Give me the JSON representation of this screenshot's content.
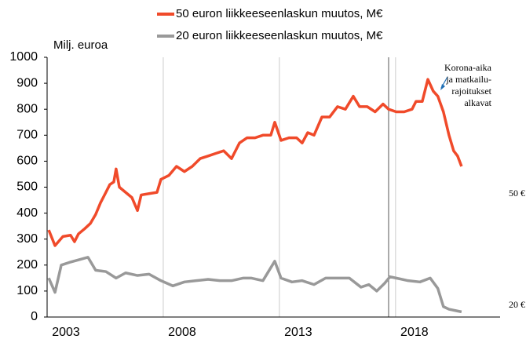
{
  "chart_data": {
    "type": "line",
    "y_label": "Milj. euroa",
    "series": [
      {
        "name": "50 euron liikkeeseenlaskun muutos, M€",
        "color": "#f04a2a",
        "x": [
          2003.07,
          2003.34,
          2003.68,
          2004.01,
          2004.18,
          2004.35,
          2004.62,
          2004.86,
          2005.09,
          2005.3,
          2005.53,
          2005.7,
          2005.87,
          2005.97,
          2006.11,
          2006.38,
          2006.65,
          2006.89,
          2007.05,
          2007.39,
          2007.73,
          2007.9,
          2008.24,
          2008.57,
          2008.91,
          2009.25,
          2009.59,
          2009.93,
          2010.26,
          2010.6,
          2010.94,
          2011.28,
          2011.61,
          2011.95,
          2012.29,
          2012.63,
          2012.8,
          2013.07,
          2013.41,
          2013.74,
          2013.98,
          2014.22,
          2014.49,
          2014.83,
          2015.16,
          2015.5,
          2015.84,
          2016.18,
          2016.45,
          2016.78,
          2017.12,
          2017.46,
          2017.7,
          2018.03,
          2018.37,
          2018.71,
          2018.88,
          2019.15,
          2019.39,
          2019.62,
          2019.82,
          2020.06,
          2020.3,
          2020.5,
          2020.67,
          2020.84
        ],
        "values": [
          335,
          275,
          310,
          315,
          290,
          320,
          340,
          360,
          395,
          440,
          480,
          510,
          520,
          570,
          500,
          480,
          460,
          410,
          470,
          475,
          480,
          530,
          545,
          580,
          560,
          580,
          610,
          620,
          630,
          640,
          610,
          670,
          690,
          690,
          700,
          700,
          750,
          680,
          690,
          690,
          670,
          710,
          700,
          770,
          770,
          810,
          800,
          850,
          810,
          810,
          790,
          820,
          800,
          790,
          790,
          800,
          830,
          830,
          915,
          870,
          850,
          790,
          700,
          640,
          620,
          580
        ],
        "end_label": "50 €"
      },
      {
        "name": "20 euron liikkeeseenlaskun muutos, M€",
        "color": "#999999",
        "x": [
          2003.07,
          2003.34,
          2003.61,
          2003.95,
          2004.35,
          2004.76,
          2005.09,
          2005.53,
          2005.97,
          2006.38,
          2006.89,
          2007.39,
          2007.9,
          2008.41,
          2008.91,
          2009.42,
          2009.93,
          2010.43,
          2010.94,
          2011.45,
          2011.78,
          2012.29,
          2012.8,
          2013.07,
          2013.54,
          2013.98,
          2014.49,
          2014.99,
          2015.5,
          2016.01,
          2016.51,
          2016.85,
          2017.19,
          2017.53,
          2017.76,
          2018.03,
          2018.54,
          2019.05,
          2019.49,
          2019.82,
          2020.06,
          2020.3,
          2020.57,
          2020.84
        ],
        "values": [
          150,
          95,
          200,
          210,
          220,
          230,
          180,
          175,
          150,
          170,
          160,
          165,
          140,
          120,
          135,
          140,
          145,
          140,
          140,
          150,
          150,
          140,
          215,
          150,
          135,
          140,
          125,
          150,
          150,
          150,
          115,
          125,
          100,
          130,
          155,
          150,
          140,
          135,
          150,
          110,
          40,
          30,
          25,
          20
        ],
        "end_label": "20 €"
      }
    ],
    "xlim": [
      2003,
      2022.5
    ],
    "xticks": [
      2003,
      2008,
      2013,
      2018
    ],
    "ylim": [
      0,
      1000
    ],
    "yticks": [
      0,
      100,
      200,
      300,
      400,
      500,
      600,
      700,
      800,
      900,
      1000
    ],
    "grid_x": true,
    "annotation": [
      "Korona-aika",
      "ja matkailu-",
      "rajoitukset",
      "alkavat"
    ]
  }
}
